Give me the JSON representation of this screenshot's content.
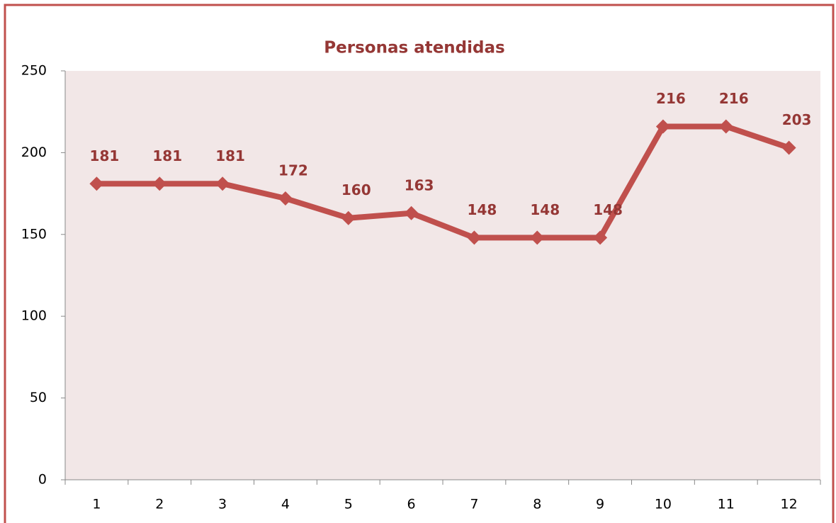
{
  "chart_data": {
    "type": "line",
    "title": "Personas atendidas",
    "categories": [
      "1",
      "2",
      "3",
      "4",
      "5",
      "6",
      "7",
      "8",
      "9",
      "10",
      "11",
      "12"
    ],
    "series": [
      {
        "name": "Personas atendidas",
        "color": "#c0504d",
        "values": [
          181,
          181,
          181,
          172,
          160,
          163,
          148,
          148,
          148,
          216,
          216,
          203
        ]
      }
    ],
    "ylim": [
      0,
      250
    ],
    "yticks": [
      0,
      50,
      100,
      150,
      200,
      250
    ],
    "grid": false
  }
}
